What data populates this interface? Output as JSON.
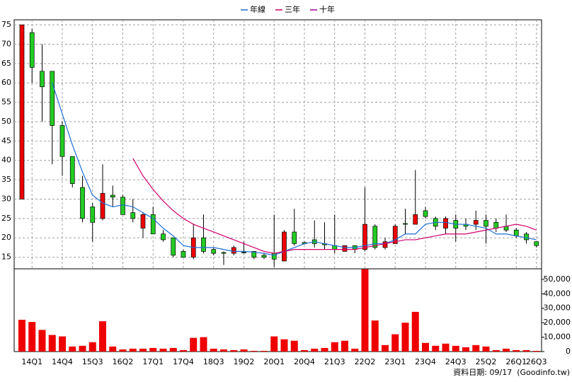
{
  "chart_data": [
    {
      "type": "candlestick",
      "categories": [
        null,
        "14Q1",
        null,
        null,
        "14Q4",
        null,
        null,
        "15Q3",
        null,
        null,
        "16Q2",
        null,
        null,
        "17Q1",
        null,
        null,
        "17Q4",
        null,
        null,
        "18Q3",
        null,
        null,
        "19Q2",
        null,
        null,
        "20Q1",
        null,
        null,
        "20Q4",
        null,
        null,
        "21Q3",
        null,
        null,
        "22Q2",
        null,
        null,
        "23Q1",
        null,
        null,
        "23Q4",
        null,
        null,
        "24Q3",
        null,
        null,
        "25Q2",
        null,
        null,
        "26Q1",
        null,
        "26Q3"
      ],
      "open": [
        30,
        73,
        63,
        63,
        49,
        41,
        33,
        28,
        25,
        31,
        30.5,
        26.5,
        22.5,
        26,
        21,
        20,
        16.5,
        15,
        20,
        17,
        16.2,
        16,
        16.3,
        16.5,
        15.5,
        16,
        14,
        21.5,
        18.8,
        19.5,
        18.5,
        18,
        16.5,
        18,
        17,
        23,
        17.5,
        18.5,
        23.7,
        23.5,
        27,
        25,
        22.5,
        24.5,
        23.5,
        23.5,
        24.5,
        24,
        23,
        22,
        21,
        19
      ],
      "high": [
        75,
        74,
        70,
        63,
        50,
        41,
        36,
        29,
        39,
        33.5,
        31,
        30,
        26.5,
        28,
        22,
        20,
        17,
        23.5,
        26,
        17.5,
        16.5,
        18,
        19,
        16.5,
        16,
        26,
        22,
        27.5,
        19,
        24.5,
        24,
        26,
        18,
        18,
        33,
        23.5,
        20,
        23.5,
        27.5,
        37.5,
        28,
        25.5,
        25.5,
        26,
        25,
        27,
        26,
        25,
        26,
        22.5,
        21.5,
        19
      ],
      "low": [
        30,
        60,
        50,
        39,
        36,
        33,
        24,
        19,
        24.5,
        28,
        26,
        24,
        20,
        21,
        19,
        15,
        15,
        14.5,
        16,
        15.5,
        13,
        15.5,
        16,
        14.5,
        14.5,
        12.5,
        14,
        18,
        18.3,
        17.5,
        17,
        16,
        16.5,
        16,
        16.5,
        17,
        17,
        18.5,
        21,
        23.5,
        25,
        22,
        21,
        19,
        22,
        22,
        18.5,
        21.5,
        21.5,
        20,
        18.5,
        17.5
      ],
      "close": [
        75,
        64,
        59,
        49,
        41,
        34,
        25,
        24,
        31.5,
        30.5,
        26,
        25,
        26,
        21,
        19.5,
        15.5,
        15,
        20,
        16.5,
        16,
        16,
        17.5,
        16.1,
        15,
        15,
        14.5,
        21.5,
        18.5,
        18.5,
        18.5,
        18.2,
        17,
        18,
        17,
        23.5,
        17.5,
        19,
        23,
        23.5,
        26,
        25.5,
        23,
        25,
        22.5,
        23,
        24.5,
        23,
        22.5,
        22,
        20.5,
        19.5,
        18
      ],
      "up_color": "#ee0000",
      "down_color": "#22cc22",
      "series": [
        {
          "name": "年線",
          "color": "#1f6fd6",
          "values": [
            null,
            null,
            null,
            60,
            52,
            44,
            37,
            31,
            29,
            28,
            28.5,
            28,
            26.5,
            25,
            22.5,
            20.5,
            18,
            17.5,
            17.5,
            17.5,
            17,
            16.5,
            16.5,
            16.3,
            16,
            15.5,
            16.5,
            17.5,
            18.5,
            19,
            18.5,
            18,
            17.5,
            17.5,
            18,
            18.5,
            18.5,
            19.5,
            21,
            21,
            23.5,
            24,
            24,
            23.5,
            23.5,
            23,
            22.5,
            21,
            21,
            20.5,
            20,
            19.5
          ]
        },
        {
          "name": "三年",
          "color": "#d0006e",
          "values": [
            null,
            null,
            null,
            null,
            null,
            null,
            null,
            null,
            null,
            null,
            null,
            40.5,
            36,
            32.5,
            29.5,
            27,
            25,
            23.5,
            22.5,
            21.5,
            20.5,
            19.5,
            18.5,
            17.5,
            16.5,
            16,
            16.5,
            17,
            17,
            17,
            17,
            17,
            17,
            17,
            17.5,
            18,
            18.5,
            19,
            19.5,
            19.5,
            20,
            20.5,
            21,
            21,
            21,
            21.5,
            22,
            22.5,
            23,
            23.5,
            23,
            22
          ]
        },
        {
          "name": "十年",
          "color": "#9a0099",
          "values": [
            null,
            null,
            null,
            null,
            null,
            null,
            null,
            null,
            null,
            null,
            null,
            null,
            null,
            null,
            null,
            null,
            null,
            null,
            null,
            null,
            null,
            null,
            null,
            null,
            null,
            null,
            null,
            null,
            null,
            null,
            null,
            null,
            null,
            null,
            null,
            null,
            null,
            null,
            null,
            null,
            null,
            null,
            null,
            null,
            null,
            null,
            null,
            null,
            null,
            null,
            null,
            null
          ]
        }
      ],
      "ylim": [
        12,
        76.3
      ],
      "yticks": [
        15,
        20,
        25,
        30,
        35,
        40,
        45,
        50,
        55,
        60,
        65,
        70,
        75
      ],
      "grid": true,
      "legend": "top",
      "footnote": "資料日期: 09/17  (Goodinfo.tw)"
    },
    {
      "type": "bar",
      "color": "#ee0000",
      "values": [
        22000,
        20500,
        15000,
        11500,
        10500,
        3500,
        4000,
        6500,
        21000,
        3500,
        1500,
        2000,
        2000,
        2500,
        2000,
        2500,
        1000,
        9500,
        10000,
        2000,
        1500,
        1000,
        1500,
        500,
        500,
        10500,
        8500,
        7500,
        1000,
        2000,
        2500,
        6500,
        7500,
        2000,
        57000,
        21500,
        4500,
        12000,
        20000,
        27500,
        6000,
        4000,
        5500,
        4000,
        3000,
        4500,
        3500,
        1000,
        2000,
        1000,
        1000,
        500
      ],
      "ylim": [
        0,
        57300
      ],
      "yticks": [
        0,
        {
          "value": 10000,
          "label": "10,000"
        },
        {
          "value": 20000,
          "label": "20,000"
        },
        {
          "value": 30000,
          "label": "30,000"
        },
        {
          "value": 40000,
          "label": "40,000"
        },
        {
          "value": 50000,
          "label": "50,000"
        }
      ]
    }
  ]
}
